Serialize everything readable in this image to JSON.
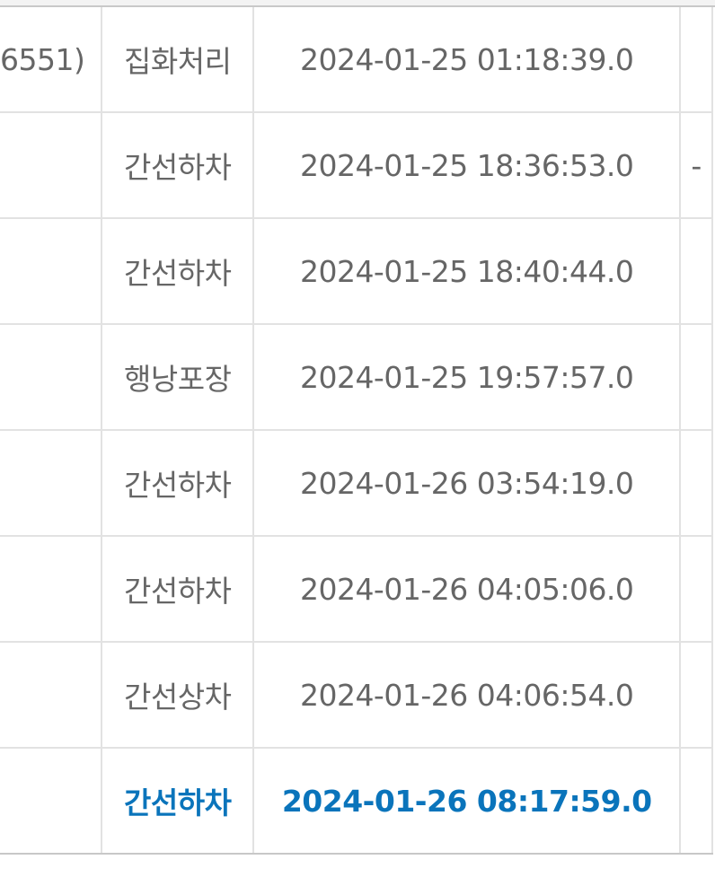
{
  "accent_color": "#0a74bb",
  "rows": [
    {
      "location": "6551)",
      "status": "집화처리",
      "datetime": "2024-01-25 01:18:39.0",
      "extra": ""
    },
    {
      "location": "",
      "status": "간선하차",
      "datetime": "2024-01-25 18:36:53.0",
      "extra": "-"
    },
    {
      "location": "",
      "status": "간선하차",
      "datetime": "2024-01-25 18:40:44.0",
      "extra": ""
    },
    {
      "location": "",
      "status": "행낭포장",
      "datetime": "2024-01-25 19:57:57.0",
      "extra": ""
    },
    {
      "location": "",
      "status": "간선하차",
      "datetime": "2024-01-26 03:54:19.0",
      "extra": ""
    },
    {
      "location": "",
      "status": "간선하차",
      "datetime": "2024-01-26 04:05:06.0",
      "extra": ""
    },
    {
      "location": "",
      "status": "간선상차",
      "datetime": "2024-01-26 04:06:54.0",
      "extra": ""
    },
    {
      "location": "",
      "status": "간선하차",
      "datetime": "2024-01-26 08:17:59.0",
      "extra": "",
      "current": true
    }
  ]
}
